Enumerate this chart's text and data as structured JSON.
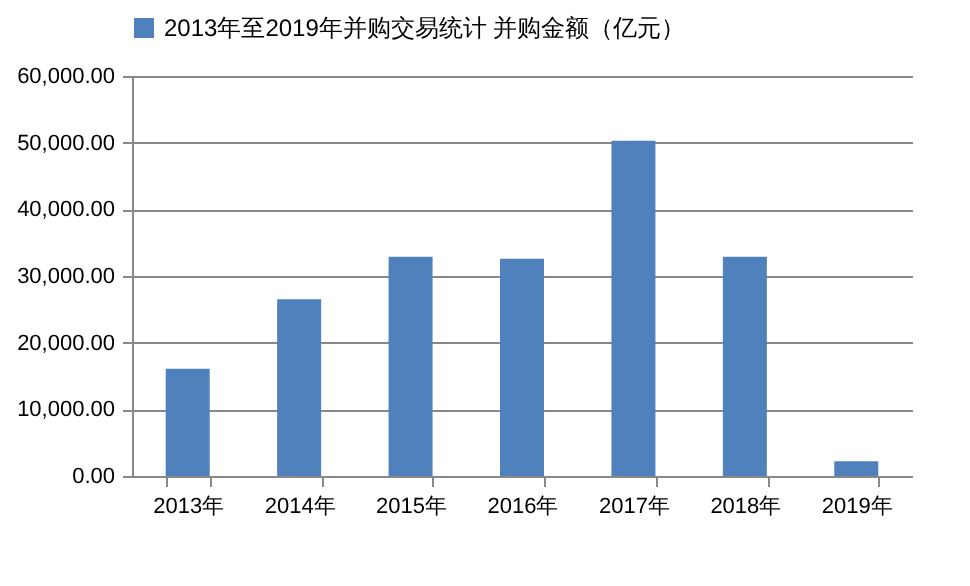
{
  "chart_data": {
    "type": "bar",
    "categories": [
      "2013年",
      "2014年",
      "2015年",
      "2016年",
      "2017年",
      "2018年",
      "2019年"
    ],
    "series": [
      {
        "name": "2013年至2019年并购交易统计 并购金额（亿元）",
        "color": "#4f81bd",
        "values": [
          16100,
          26500,
          32900,
          32600,
          50300,
          32900,
          2200
        ]
      }
    ],
    "ylim": [
      0,
      60000
    ],
    "yticks": [
      {
        "value": 0,
        "label": "0.00"
      },
      {
        "value": 10000,
        "label": "10,000.00"
      },
      {
        "value": 20000,
        "label": "20,000.00"
      },
      {
        "value": 30000,
        "label": "30,000.00"
      },
      {
        "value": 40000,
        "label": "40,000.00"
      },
      {
        "value": 50000,
        "label": "50,000.00"
      },
      {
        "value": 60000,
        "label": "60,000.00"
      }
    ],
    "grid": "y",
    "legend": "top"
  }
}
